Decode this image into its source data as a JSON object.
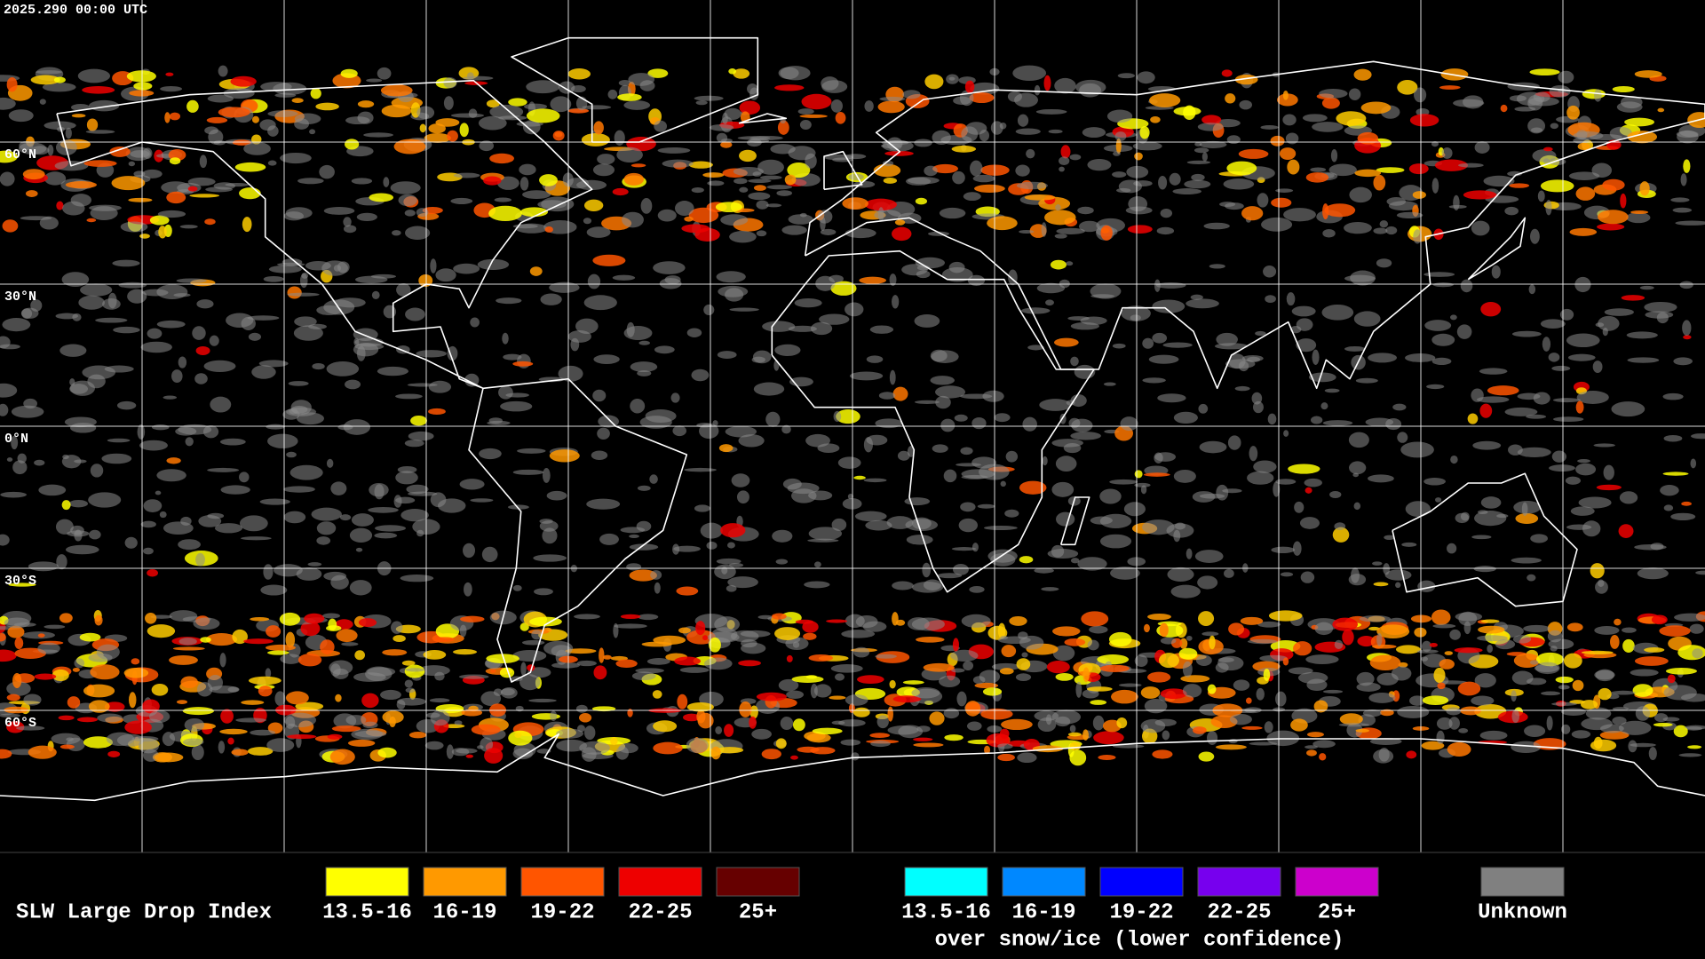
{
  "timestamp": "2025.290 00:00 UTC",
  "latitude_labels": [
    "60°N",
    "30°N",
    "0°N",
    "30°S",
    "60°S"
  ],
  "legend": {
    "title": "SLW Large Drop Index",
    "items": [
      {
        "label": "13.5-16",
        "color": "#ffff00"
      },
      {
        "label": "16-19",
        "color": "#ff9900"
      },
      {
        "label": "19-22",
        "color": "#ff5500"
      },
      {
        "label": "22-25",
        "color": "#ee0000"
      },
      {
        "label": "25+",
        "color": "#660000"
      }
    ],
    "snow_items": [
      {
        "label": "13.5-16",
        "color": "#00ffff"
      },
      {
        "label": "16-19",
        "color": "#0088ff"
      },
      {
        "label": "19-22",
        "color": "#0000ff"
      },
      {
        "label": "22-25",
        "color": "#7700ee"
      },
      {
        "label": "25+",
        "color": "#cc00cc"
      }
    ],
    "snow_caption": "over snow/ice (lower confidence)",
    "unknown": {
      "label": "Unknown",
      "color": "#808080"
    }
  }
}
